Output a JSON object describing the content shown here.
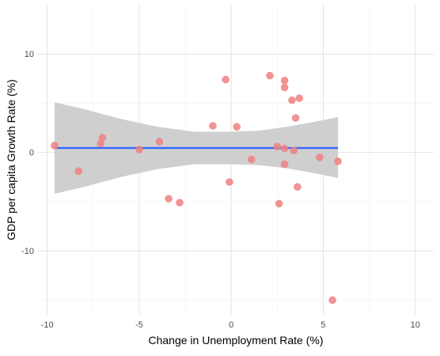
{
  "chart_data": {
    "type": "scatter",
    "title": "",
    "xlabel": "Change in Unemployment Rate (%)",
    "ylabel": "GDP per capita Growth Rate (%)",
    "xlim": [
      -10.5,
      11
    ],
    "ylim": [
      -16.5,
      15
    ],
    "x_ticks": [
      -10,
      -5,
      0,
      5,
      10
    ],
    "x_tick_labels": [
      "-10",
      "-5",
      "0",
      "5",
      "10"
    ],
    "y_ticks": [
      -10,
      0,
      10
    ],
    "y_tick_labels": [
      "-10",
      "0",
      "10"
    ],
    "grid": true,
    "legend": "none",
    "point_color": "#F08080",
    "points": [
      {
        "x": -9.6,
        "y": 0.7
      },
      {
        "x": -8.3,
        "y": -1.9
      },
      {
        "x": -7.0,
        "y": 1.5
      },
      {
        "x": -7.1,
        "y": 0.9
      },
      {
        "x": -5.0,
        "y": 0.3
      },
      {
        "x": -3.9,
        "y": 1.1
      },
      {
        "x": -3.4,
        "y": -4.7
      },
      {
        "x": -2.8,
        "y": -5.1
      },
      {
        "x": -1.0,
        "y": 2.7
      },
      {
        "x": -0.3,
        "y": 7.4
      },
      {
        "x": -0.1,
        "y": -3.0
      },
      {
        "x": 0.3,
        "y": 2.6
      },
      {
        "x": 1.1,
        "y": -0.7
      },
      {
        "x": 2.1,
        "y": 7.8
      },
      {
        "x": 2.5,
        "y": 0.6
      },
      {
        "x": 2.6,
        "y": -5.2
      },
      {
        "x": 2.9,
        "y": 7.3
      },
      {
        "x": 2.9,
        "y": 6.6
      },
      {
        "x": 2.9,
        "y": 0.4
      },
      {
        "x": 2.9,
        "y": -1.2
      },
      {
        "x": 3.3,
        "y": 5.3
      },
      {
        "x": 3.4,
        "y": 0.2
      },
      {
        "x": 3.5,
        "y": 3.5
      },
      {
        "x": 3.7,
        "y": 5.5
      },
      {
        "x": 3.6,
        "y": -3.5
      },
      {
        "x": 4.8,
        "y": -0.5
      },
      {
        "x": 5.8,
        "y": -0.9
      },
      {
        "x": 5.5,
        "y": -15.0
      }
    ],
    "fit_line": {
      "color": "#3366FF",
      "x": [
        -9.6,
        5.8
      ],
      "y": [
        0.45,
        0.45
      ]
    },
    "confidence_band": {
      "color": "#cccccc",
      "x": [
        -9.6,
        -8,
        -6,
        -4,
        -2,
        0,
        1.5,
        3,
        4.5,
        5.8
      ],
      "upper": [
        5.1,
        4.4,
        3.4,
        2.6,
        2.1,
        2.1,
        2.2,
        2.6,
        3.1,
        3.6
      ],
      "lower": [
        -4.2,
        -3.5,
        -2.5,
        -1.7,
        -1.2,
        -1.2,
        -1.3,
        -1.6,
        -2.1,
        -2.6
      ]
    }
  }
}
